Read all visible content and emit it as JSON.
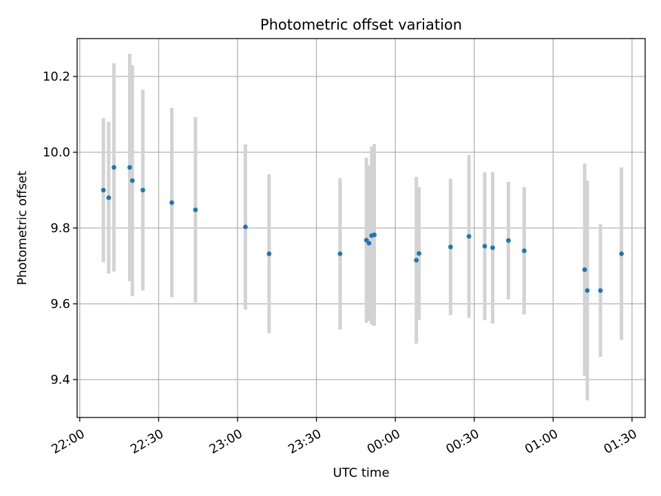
{
  "chart_data": {
    "type": "scatter",
    "title": "Photometric offset variation",
    "xlabel": "UTC time",
    "ylabel": "Photometric offset",
    "x_ticks": [
      "22:00",
      "22:30",
      "23:00",
      "23:30",
      "00:00",
      "00:30",
      "01:00",
      "01:30"
    ],
    "y_ticks": [
      "9.4",
      "9.6",
      "9.8",
      "10.0",
      "10.2"
    ],
    "ylim": [
      9.3,
      10.3
    ],
    "xlim": [
      "21:59",
      "01:35"
    ],
    "grid": true,
    "colors": {
      "point": "#1f77b4",
      "errorbar": "#d3d3d3",
      "grid": "#b0b0b0"
    },
    "points": [
      {
        "t": "22:09",
        "y": 9.9,
        "err": 0.19
      },
      {
        "t": "22:11",
        "y": 9.88,
        "err": 0.2
      },
      {
        "t": "22:13",
        "y": 9.96,
        "err": 0.275
      },
      {
        "t": "22:19",
        "y": 9.96,
        "err": 0.3
      },
      {
        "t": "22:20",
        "y": 9.925,
        "err": 0.305
      },
      {
        "t": "22:24",
        "y": 9.9,
        "err": 0.265
      },
      {
        "t": "22:35",
        "y": 9.867,
        "err": 0.25
      },
      {
        "t": "22:44",
        "y": 9.848,
        "err": 0.245
      },
      {
        "t": "23:03",
        "y": 9.803,
        "err": 0.218
      },
      {
        "t": "23:12",
        "y": 9.732,
        "err": 0.21
      },
      {
        "t": "23:39",
        "y": 9.732,
        "err": 0.2
      },
      {
        "t": "23:49",
        "y": 9.768,
        "err": 0.218
      },
      {
        "t": "23:50",
        "y": 9.76,
        "err": 0.205
      },
      {
        "t": "23:51",
        "y": 9.78,
        "err": 0.235
      },
      {
        "t": "23:52",
        "y": 9.782,
        "err": 0.24
      },
      {
        "t": "00:08",
        "y": 9.715,
        "err": 0.22
      },
      {
        "t": "00:09",
        "y": 9.733,
        "err": 0.175
      },
      {
        "t": "00:21",
        "y": 9.75,
        "err": 0.18
      },
      {
        "t": "00:28",
        "y": 9.778,
        "err": 0.215
      },
      {
        "t": "00:34",
        "y": 9.752,
        "err": 0.195
      },
      {
        "t": "00:37",
        "y": 9.748,
        "err": 0.2
      },
      {
        "t": "00:43",
        "y": 9.767,
        "err": 0.155
      },
      {
        "t": "00:49",
        "y": 9.74,
        "err": 0.168
      },
      {
        "t": "01:12",
        "y": 9.69,
        "err": 0.28
      },
      {
        "t": "01:13",
        "y": 9.635,
        "err": 0.29
      },
      {
        "t": "01:18",
        "y": 9.635,
        "err": 0.175
      },
      {
        "t": "01:26",
        "y": 9.732,
        "err": 0.228
      }
    ]
  }
}
